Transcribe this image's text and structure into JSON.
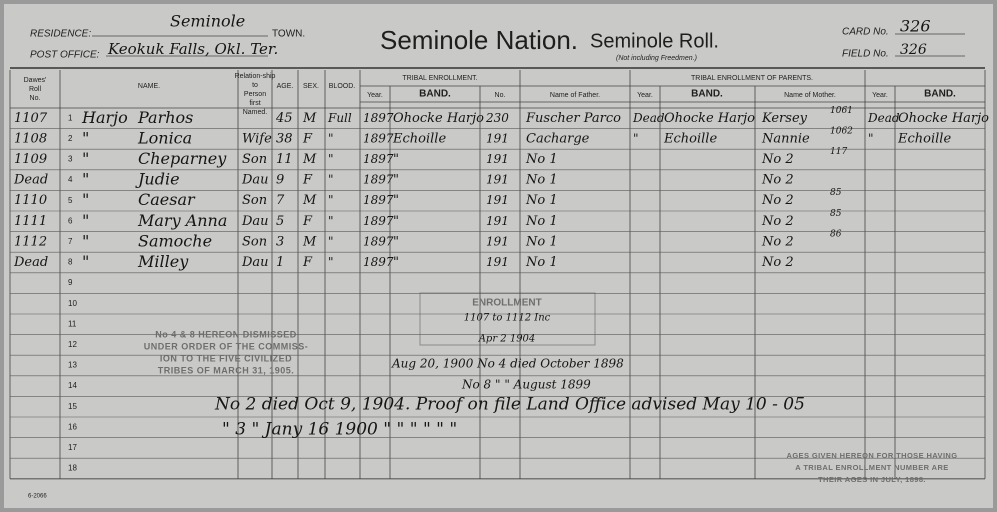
{
  "header": {
    "residence_label": "RESIDENCE:",
    "residence": "Seminole",
    "town_label": "TOWN.",
    "post_office_label": "POST OFFICE:",
    "post_office": "Keokuk Falls, Okl. Ter.",
    "title": "Seminole Nation.",
    "subtitle": "Seminole Roll.",
    "subnote": "(Not including Freedmen.)",
    "card_label": "CARD No.",
    "card_no": "326",
    "field_label": "FIELD No.",
    "field_no": "326"
  },
  "columns": {
    "dawes": "Dawes' Roll No.",
    "name": "NAME.",
    "relationship": "Relation-ship to Person first Named.",
    "age": "AGE.",
    "sex": "SEX.",
    "blood": "BLOOD.",
    "tribal": "TRIBAL ENROLLMENT.",
    "year": "Year.",
    "band": "BAND.",
    "no": "No.",
    "parents": "TRIBAL ENROLLMENT OF PARENTS.",
    "father": "Name of Father.",
    "father_year": "Year.",
    "father_band": "BAND.",
    "mother": "Name of Mother.",
    "mother_year": "Year.",
    "mother_band": "BAND."
  },
  "rows": [
    {
      "dawes": "1107",
      "number": "1",
      "surname": "Harjo",
      "name": "Parhos",
      "age": "45",
      "sex": "M",
      "blood": "Full",
      "year": "1897",
      "band": "Ohocke Harjo",
      "no": "230",
      "father": "Fuscher Parco",
      "father_year": "Dead",
      "father_band": "Ohocke Harjo",
      "mother": "Kersey",
      "mother_note": "1061",
      "mother_year": "Dead",
      "mother_band": "Ohocke Harjo"
    },
    {
      "dawes": "1108",
      "number": "2",
      "surname": "\"",
      "name": "Lonica",
      "relationship": "Wife",
      "age": "38",
      "sex": "F",
      "blood": "\"",
      "year": "1897",
      "band": "Echoille",
      "no": "191",
      "father": "Cacharge",
      "father_year": "\"",
      "father_band": "Echoille",
      "mother": "Nannie",
      "mother_note": "1062",
      "mother_year": "\"",
      "mother_band": "Echoille"
    },
    {
      "dawes": "1109",
      "number": "3",
      "surname": "\"",
      "name": "Cheparney",
      "relationship": "Son",
      "age": "11",
      "sex": "M",
      "blood": "\"",
      "year": "1897",
      "band": "\"",
      "no": "191",
      "father": "No 1",
      "mother": "No 2",
      "mother_note": "117"
    },
    {
      "dawes": "Dead",
      "number": "4",
      "surname": "\"",
      "name": "Judie",
      "relationship": "Dau",
      "age": "9",
      "sex": "F",
      "blood": "\"",
      "year": "1897",
      "band": "\"",
      "no": "191",
      "father": "No 1",
      "mother": "No 2"
    },
    {
      "dawes": "1110",
      "number": "5",
      "surname": "\"",
      "name": "Caesar",
      "relationship": "Son",
      "age": "7",
      "sex": "M",
      "blood": "\"",
      "year": "1897",
      "band": "\"",
      "no": "191",
      "father": "No 1",
      "mother": "No 2",
      "mother_note": "85"
    },
    {
      "dawes": "1111",
      "number": "6",
      "surname": "\"",
      "name": "Mary Anna",
      "relationship": "Dau",
      "age": "5",
      "sex": "F",
      "blood": "\"",
      "year": "1897",
      "band": "\"",
      "no": "191",
      "father": "No 1",
      "mother": "No 2",
      "mother_note": "85"
    },
    {
      "dawes": "1112",
      "number": "7",
      "surname": "\"",
      "name": "Samoche",
      "relationship": "Son",
      "age": "3",
      "sex": "M",
      "blood": "\"",
      "year": "1897",
      "band": "\"",
      "no": "191",
      "father": "No 1",
      "mother": "No 2",
      "mother_note": "86"
    },
    {
      "dawes": "Dead",
      "number": "8",
      "surname": "\"",
      "name": "Milley",
      "relationship": "Dau",
      "age": "1",
      "sex": "F",
      "blood": "\"",
      "year": "1897",
      "band": "\"",
      "no": "191",
      "father": "No 1",
      "mother": "No 2"
    },
    {
      "number": "9"
    },
    {
      "number": "10"
    },
    {
      "number": "11"
    },
    {
      "number": "12"
    },
    {
      "number": "13"
    },
    {
      "number": "14"
    },
    {
      "number": "15"
    },
    {
      "number": "16"
    },
    {
      "number": "17"
    },
    {
      "number": "18"
    }
  ],
  "stamps": {
    "dismissed": [
      "No 4 & 8 HEREON DISMISSED",
      "UNDER ORDER OF THE COMMISS-",
      "ION TO THE FIVE CIVILIZED",
      "TRIBES OF MARCH 31, 1905."
    ],
    "enrollment_title": "ENROLLMENT",
    "enrollment_range": "1107 to 1112 Inc",
    "enrollment_date": "Apr 2 1904"
  },
  "notes": [
    "Aug 20, 1900  No 4 died October 1898",
    "No 8  \"  \"  August 1899",
    "No 2 died Oct 9, 1904. Proof on file Land Office advised May 10 - 05",
    "\"  3  \"  Jany 16 1900   \"   \"   \"   \"   \"   \""
  ],
  "footer": {
    "ages_note": [
      "AGES GIVEN HEREON FOR THOSE HAVING",
      "A TRIBAL ENROLLMENT NUMBER ARE",
      "THEIR AGES IN JULY, 1898."
    ],
    "form_no": "6-2066"
  }
}
